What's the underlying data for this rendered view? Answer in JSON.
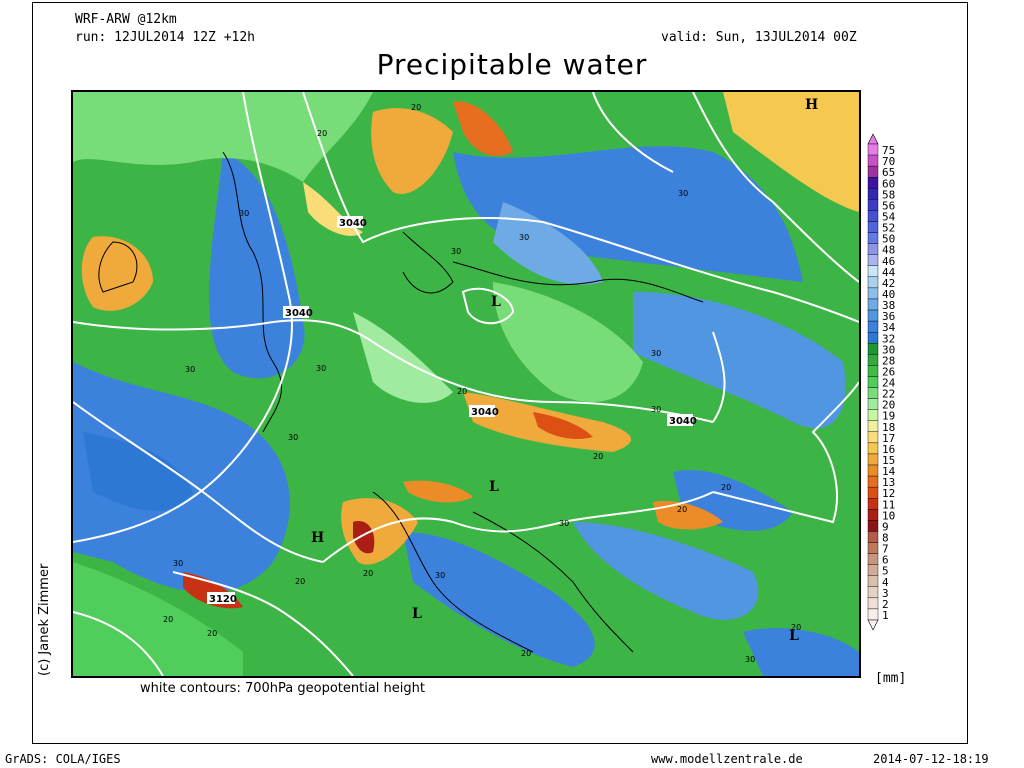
{
  "header": {
    "model": "WRF-ARW @12km",
    "run": "run: 12JUL2014 12Z +12h",
    "valid": "valid: Sun, 13JUL2014 00Z",
    "title": "Precipitable water"
  },
  "map": {
    "contour_labels": [
      "3040",
      "3040",
      "3040",
      "3040",
      "3120",
      "30",
      "30",
      "30",
      "30",
      "30",
      "30",
      "30",
      "30",
      "30",
      "30",
      "30",
      "30",
      "30",
      "20",
      "20",
      "20",
      "20",
      "20",
      "20",
      "20",
      "20",
      "20",
      "20",
      "20",
      "20"
    ],
    "pressure_centers": [
      "H",
      "L",
      "L",
      "H",
      "L",
      "L"
    ],
    "contour_description": "white contours: 700hPa geopotential height"
  },
  "legend": {
    "unit": "[mm]",
    "levels": [
      "75",
      "70",
      "65",
      "60",
      "58",
      "56",
      "54",
      "52",
      "50",
      "48",
      "46",
      "44",
      "42",
      "40",
      "38",
      "36",
      "34",
      "32",
      "30",
      "28",
      "26",
      "24",
      "22",
      "20",
      "19",
      "18",
      "17",
      "16",
      "15",
      "14",
      "13",
      "12",
      "11",
      "10",
      "9",
      "8",
      "7",
      "6",
      "5",
      "4",
      "3",
      "2",
      "1"
    ],
    "colors": [
      "#e67de6",
      "#c850c8",
      "#a032a0",
      "#3c14a0",
      "#3228b4",
      "#3c3cc8",
      "#4650d2",
      "#5064dc",
      "#6478e6",
      "#8c96e6",
      "#aab4f0",
      "#c8e6f5",
      "#aad2f0",
      "#8cbeeb",
      "#6eaae6",
      "#5096e1",
      "#3c82dc",
      "#2d78d2",
      "#1e9632",
      "#32aa3c",
      "#3cbe46",
      "#50cd5a",
      "#78dc78",
      "#a0eba0",
      "#c8f5a0",
      "#f0f0a0",
      "#fadc78",
      "#f5c850",
      "#f0aa3c",
      "#eb8c28",
      "#e66e1e",
      "#dc5014",
      "#c83214",
      "#aa1e14",
      "#8c1414",
      "#b45a46",
      "#be785a",
      "#c8967d",
      "#d2aa96",
      "#dcbeaa",
      "#e6d2c3",
      "#f0e1d7",
      "#faf0eb"
    ]
  },
  "credits": {
    "author": "(c) Janek Zimmer",
    "software": "GrADS: COLA/IGES",
    "website": "www.modellzentrale.de",
    "timestamp": "2014-07-12-18:19"
  }
}
